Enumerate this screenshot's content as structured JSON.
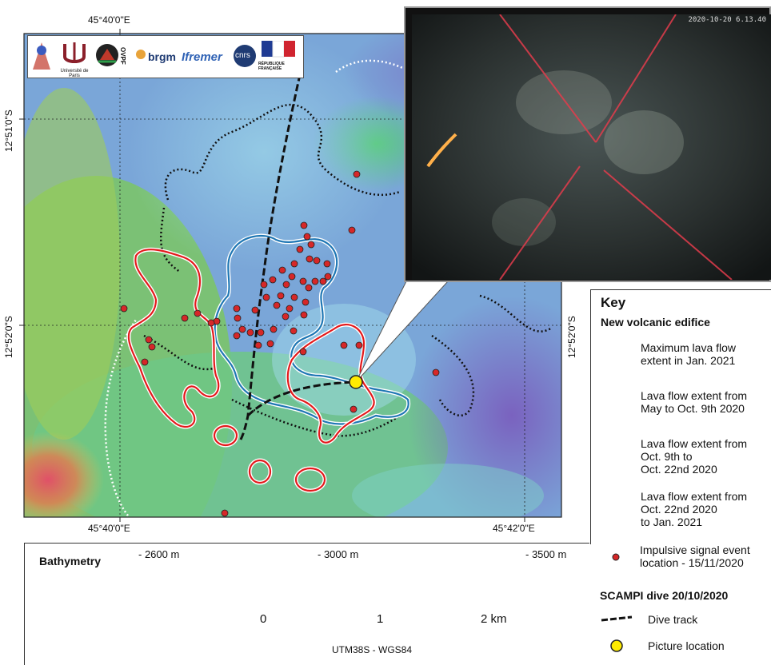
{
  "graticule": {
    "lon_left": "45°40'0\"E",
    "lon_right": "45°42'0\"E",
    "lat_top": "12°51'0\"S",
    "lat_mid": "12°52'0\"S"
  },
  "logos": [
    {
      "name": "ipgp-logo",
      "text": ""
    },
    {
      "name": "universite-de-paris-logo",
      "text": "Université de Paris"
    },
    {
      "name": "ovpf-logo",
      "text": "OVPF"
    },
    {
      "name": "brgm-logo",
      "text": "brgm"
    },
    {
      "name": "ifremer-logo",
      "text": "Ifremer"
    },
    {
      "name": "cnrs-logo",
      "text": "cnrs"
    },
    {
      "name": "republique-francaise-logo",
      "text": "RÉPUBLIQUE FRANÇAISE"
    }
  ],
  "inset": {
    "timestamp": "2020-10-20  6.13.40"
  },
  "key": {
    "title": "Key",
    "subtitle": "New volcanic edifice",
    "items": [
      {
        "label_1": "Maximum lava flow",
        "label_2": "extent in Jan. 2021",
        "color": "#ffffff"
      },
      {
        "label_1": "Lava flow extent from",
        "label_2": "May to Oct. 9th 2020",
        "color": "#222222"
      },
      {
        "label_1": "Lava flow extent from",
        "label_2": "Oct. 9th to",
        "label_3": "Oct. 22nd 2020",
        "color": "#1f77b4"
      },
      {
        "label_1": "Lava flow extent from",
        "label_2": "Oct. 22nd 2020",
        "label_3": "to Jan. 2021",
        "color": "#e31a1c"
      },
      {
        "label_1": "Impulsive signal event",
        "label_2": "location - 15/11/2020",
        "color": "#d62728"
      }
    ]
  },
  "scampi": {
    "title": "SCAMPI dive 20/10/2020",
    "dive_track": "Dive track",
    "picture_location": "Picture location",
    "picture_color": "#ffeb00"
  },
  "bathymetry": {
    "title": "Bathymetry",
    "ticks": [
      "- 2600 m",
      "- 3000 m",
      "- 3500 m"
    ],
    "colors": [
      "#c8506e",
      "#e2893c",
      "#e8e23a",
      "#7dc24a",
      "#4fb37a",
      "#4ec3d2",
      "#5c82d0",
      "#5a46a8",
      "#8e5bb0"
    ]
  },
  "scale": {
    "ticks": [
      "0",
      "1",
      "2 km"
    ],
    "projection": "UTM38S - WGS84"
  }
}
